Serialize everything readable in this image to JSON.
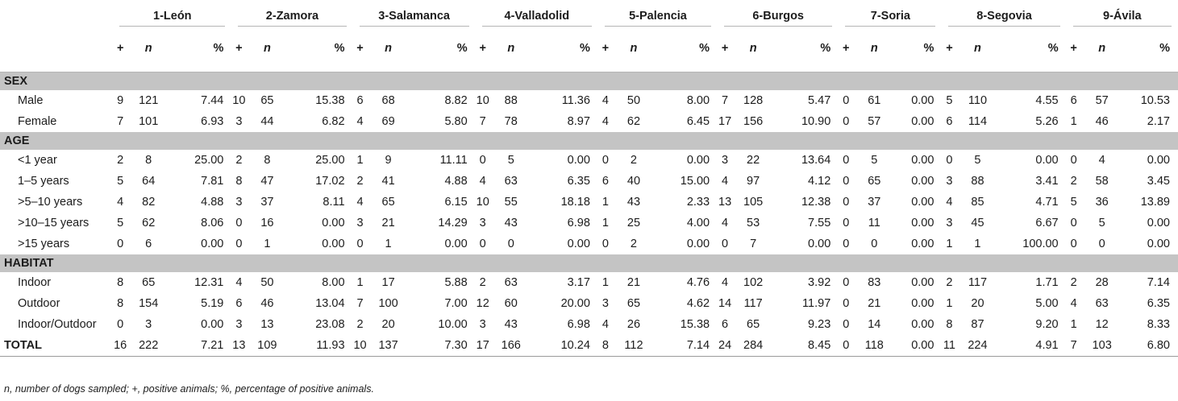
{
  "regions": [
    "1-León",
    "2-Zamora",
    "3-Salamanca",
    "4-Valladolid",
    "5-Palencia",
    "6-Burgos",
    "7-Soria",
    "8-Segovia",
    "9-Ávila"
  ],
  "subheaders": {
    "pos": "+",
    "n": "n",
    "pct": "%"
  },
  "sections": [
    {
      "title": "SEX",
      "rows": [
        {
          "label": "Male",
          "values": [
            [
              "9",
              "121",
              "7.44"
            ],
            [
              "10",
              "65",
              "15.38"
            ],
            [
              "6",
              "68",
              "8.82"
            ],
            [
              "10",
              "88",
              "11.36"
            ],
            [
              "4",
              "50",
              "8.00"
            ],
            [
              "7",
              "128",
              "5.47"
            ],
            [
              "0",
              "61",
              "0.00"
            ],
            [
              "5",
              "110",
              "4.55"
            ],
            [
              "6",
              "57",
              "10.53"
            ]
          ]
        },
        {
          "label": "Female",
          "values": [
            [
              "7",
              "101",
              "6.93"
            ],
            [
              "3",
              "44",
              "6.82"
            ],
            [
              "4",
              "69",
              "5.80"
            ],
            [
              "7",
              "78",
              "8.97"
            ],
            [
              "4",
              "62",
              "6.45"
            ],
            [
              "17",
              "156",
              "10.90"
            ],
            [
              "0",
              "57",
              "0.00"
            ],
            [
              "6",
              "114",
              "5.26"
            ],
            [
              "1",
              "46",
              "2.17"
            ]
          ]
        }
      ]
    },
    {
      "title": "AGE",
      "rows": [
        {
          "label": "<1 year",
          "values": [
            [
              "2",
              "8",
              "25.00"
            ],
            [
              "2",
              "8",
              "25.00"
            ],
            [
              "1",
              "9",
              "11.11"
            ],
            [
              "0",
              "5",
              "0.00"
            ],
            [
              "0",
              "2",
              "0.00"
            ],
            [
              "3",
              "22",
              "13.64"
            ],
            [
              "0",
              "5",
              "0.00"
            ],
            [
              "0",
              "5",
              "0.00"
            ],
            [
              "0",
              "4",
              "0.00"
            ]
          ]
        },
        {
          "label": "1–5 years",
          "values": [
            [
              "5",
              "64",
              "7.81"
            ],
            [
              "8",
              "47",
              "17.02"
            ],
            [
              "2",
              "41",
              "4.88"
            ],
            [
              "4",
              "63",
              "6.35"
            ],
            [
              "6",
              "40",
              "15.00"
            ],
            [
              "4",
              "97",
              "4.12"
            ],
            [
              "0",
              "65",
              "0.00"
            ],
            [
              "3",
              "88",
              "3.41"
            ],
            [
              "2",
              "58",
              "3.45"
            ]
          ]
        },
        {
          "label": ">5–10 years",
          "values": [
            [
              "4",
              "82",
              "4.88"
            ],
            [
              "3",
              "37",
              "8.11"
            ],
            [
              "4",
              "65",
              "6.15"
            ],
            [
              "10",
              "55",
              "18.18"
            ],
            [
              "1",
              "43",
              "2.33"
            ],
            [
              "13",
              "105",
              "12.38"
            ],
            [
              "0",
              "37",
              "0.00"
            ],
            [
              "4",
              "85",
              "4.71"
            ],
            [
              "5",
              "36",
              "13.89"
            ]
          ]
        },
        {
          "label": ">10–15 years",
          "values": [
            [
              "5",
              "62",
              "8.06"
            ],
            [
              "0",
              "16",
              "0.00"
            ],
            [
              "3",
              "21",
              "14.29"
            ],
            [
              "3",
              "43",
              "6.98"
            ],
            [
              "1",
              "25",
              "4.00"
            ],
            [
              "4",
              "53",
              "7.55"
            ],
            [
              "0",
              "11",
              "0.00"
            ],
            [
              "3",
              "45",
              "6.67"
            ],
            [
              "0",
              "5",
              "0.00"
            ]
          ]
        },
        {
          "label": ">15 years",
          "values": [
            [
              "0",
              "6",
              "0.00"
            ],
            [
              "0",
              "1",
              "0.00"
            ],
            [
              "0",
              "1",
              "0.00"
            ],
            [
              "0",
              "0",
              "0.00"
            ],
            [
              "0",
              "2",
              "0.00"
            ],
            [
              "0",
              "7",
              "0.00"
            ],
            [
              "0",
              "0",
              "0.00"
            ],
            [
              "1",
              "1",
              "100.00"
            ],
            [
              "0",
              "0",
              "0.00"
            ]
          ]
        }
      ]
    },
    {
      "title": "HABITAT",
      "rows": [
        {
          "label": "Indoor",
          "values": [
            [
              "8",
              "65",
              "12.31"
            ],
            [
              "4",
              "50",
              "8.00"
            ],
            [
              "1",
              "17",
              "5.88"
            ],
            [
              "2",
              "63",
              "3.17"
            ],
            [
              "1",
              "21",
              "4.76"
            ],
            [
              "4",
              "102",
              "3.92"
            ],
            [
              "0",
              "83",
              "0.00"
            ],
            [
              "2",
              "117",
              "1.71"
            ],
            [
              "2",
              "28",
              "7.14"
            ]
          ]
        },
        {
          "label": "Outdoor",
          "values": [
            [
              "8",
              "154",
              "5.19"
            ],
            [
              "6",
              "46",
              "13.04"
            ],
            [
              "7",
              "100",
              "7.00"
            ],
            [
              "12",
              "60",
              "20.00"
            ],
            [
              "3",
              "65",
              "4.62"
            ],
            [
              "14",
              "117",
              "11.97"
            ],
            [
              "0",
              "21",
              "0.00"
            ],
            [
              "1",
              "20",
              "5.00"
            ],
            [
              "4",
              "63",
              "6.35"
            ]
          ]
        },
        {
          "label": "Indoor/Outdoor",
          "values": [
            [
              "0",
              "3",
              "0.00"
            ],
            [
              "3",
              "13",
              "23.08"
            ],
            [
              "2",
              "20",
              "10.00"
            ],
            [
              "3",
              "43",
              "6.98"
            ],
            [
              "4",
              "26",
              "15.38"
            ],
            [
              "6",
              "65",
              "9.23"
            ],
            [
              "0",
              "14",
              "0.00"
            ],
            [
              "8",
              "87",
              "9.20"
            ],
            [
              "1",
              "12",
              "8.33"
            ]
          ]
        }
      ]
    }
  ],
  "total": {
    "label": "TOTAL",
    "values": [
      [
        "16",
        "222",
        "7.21"
      ],
      [
        "13",
        "109",
        "11.93"
      ],
      [
        "10",
        "137",
        "7.30"
      ],
      [
        "17",
        "166",
        "10.24"
      ],
      [
        "8",
        "112",
        "7.14"
      ],
      [
        "24",
        "284",
        "8.45"
      ],
      [
        "0",
        "118",
        "0.00"
      ],
      [
        "11",
        "224",
        "4.91"
      ],
      [
        "7",
        "103",
        "6.80"
      ]
    ]
  },
  "footnote": "n, number of dogs sampled; +, positive animals; %, percentage of positive animals."
}
